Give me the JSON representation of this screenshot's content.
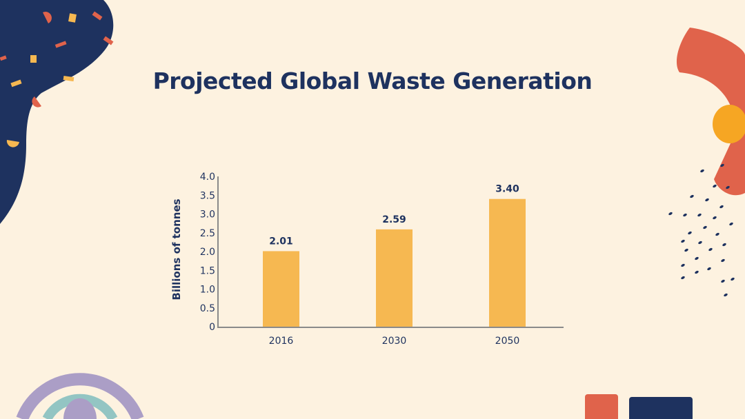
{
  "colors": {
    "background": "#fdf2e0",
    "navy": "#1e325f",
    "bar": "#f6b851",
    "coral": "#e0634b",
    "purple": "#ab9ec6",
    "teal": "#93c5c3",
    "axis": "#8a8a8a"
  },
  "chart_data": {
    "type": "bar",
    "title": "Projected Global Waste Generation",
    "categories": [
      "2016",
      "2030",
      "2050"
    ],
    "values": [
      2.01,
      2.59,
      3.4
    ],
    "data_labels": [
      "2.01",
      "2.59",
      "3.40"
    ],
    "xlabel": "",
    "ylabel": "Billions of tonnes",
    "ylim": [
      0,
      4.0
    ],
    "yticks": [
      "0",
      "0.5",
      "1.0",
      "1.5",
      "2.0",
      "2.5",
      "3.0",
      "3.5",
      "4.0"
    ],
    "grid": false,
    "legend": "none"
  }
}
